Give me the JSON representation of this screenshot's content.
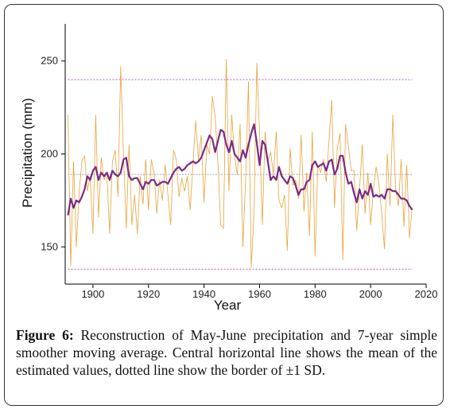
{
  "figure": {
    "caption_label": "Figure 6:",
    "caption_text": "Reconstruction of May-June precipitation and 7-year simple smoother moving average. Central horizontal line shows the mean of the estimated values, dotted line show the border of ±1 SD."
  },
  "chart_data": {
    "type": "line",
    "xlabel": "Year",
    "ylabel": "Precipitation (mm)",
    "xlim": [
      1890,
      2020
    ],
    "ylim": [
      130,
      270
    ],
    "xticks": [
      "1900",
      "1920",
      "1940",
      "1960",
      "1980",
      "2000",
      "2020"
    ],
    "yticks": [
      "150",
      "200",
      "250"
    ],
    "grid": false,
    "colors": {
      "annual": "#e8a33a",
      "smooth": "#7b2b83",
      "mean": "#999999",
      "sd": "#d25fd6"
    },
    "reference_lines": {
      "mean": 189,
      "plus_sd": 240,
      "minus_sd": 138
    },
    "series": [
      {
        "role": "annual",
        "x": [
          1891,
          1892,
          1893,
          1894,
          1895,
          1896,
          1897,
          1898,
          1899,
          1900,
          1901,
          1902,
          1903,
          1904,
          1905,
          1906,
          1907,
          1908,
          1909,
          1910,
          1911,
          1912,
          1913,
          1914,
          1915,
          1916,
          1917,
          1918,
          1919,
          1920,
          1921,
          1922,
          1923,
          1924,
          1925,
          1926,
          1927,
          1928,
          1929,
          1930,
          1931,
          1932,
          1933,
          1934,
          1935,
          1936,
          1937,
          1938,
          1939,
          1940,
          1941,
          1942,
          1943,
          1944,
          1945,
          1946,
          1947,
          1948,
          1949,
          1950,
          1951,
          1952,
          1953,
          1954,
          1955,
          1956,
          1957,
          1958,
          1959,
          1960,
          1961,
          1962,
          1963,
          1964,
          1965,
          1966,
          1967,
          1968,
          1969,
          1970,
          1971,
          1972,
          1973,
          1974,
          1975,
          1976,
          1977,
          1978,
          1979,
          1980,
          1981,
          1982,
          1983,
          1984,
          1985,
          1986,
          1987,
          1988,
          1989,
          1990,
          1991,
          1992,
          1993,
          1994,
          1995,
          1996,
          1997,
          1998,
          1999,
          2000,
          2001,
          2002,
          2003,
          2004,
          2005,
          2006,
          2007,
          2008,
          2009,
          2010,
          2011,
          2012,
          2013,
          2014,
          2015
        ],
        "y": [
          221,
          140,
          196,
          150,
          179,
          196,
          199,
          180,
          188,
          157,
          221,
          166,
          198,
          186,
          190,
          157,
          196,
          202,
          177,
          247,
          200,
          160,
          205,
          162,
          178,
          157,
          188,
          173,
          197,
          170,
          197,
          190,
          168,
          186,
          175,
          194,
          178,
          162,
          202,
          197,
          177,
          187,
          180,
          188,
          170,
          193,
          218,
          197,
          210,
          174,
          205,
          200,
          231,
          220,
          195,
          162,
          160,
          251,
          180,
          221,
          198,
          189,
          216,
          150,
          187,
          239,
          139,
          168,
          249,
          211,
          162,
          212,
          196,
          201,
          189,
          212,
          175,
          171,
          178,
          148,
          203,
          183,
          186,
          176,
          210,
          169,
          190,
          156,
          212,
          145,
          194,
          190,
          197,
          185,
          207,
          229,
          171,
          203,
          211,
          143,
          216,
          204,
          191,
          191,
          159,
          181,
          205,
          168,
          190,
          162,
          180,
          193,
          184,
          168,
          149,
          200,
          172,
          221,
          181,
          172,
          197,
          161,
          194,
          155,
          171
        ]
      },
      {
        "role": "smooth",
        "x": [
          1891,
          1892,
          1893,
          1894,
          1895,
          1896,
          1897,
          1898,
          1899,
          1900,
          1901,
          1902,
          1903,
          1904,
          1905,
          1906,
          1907,
          1908,
          1909,
          1910,
          1911,
          1912,
          1913,
          1914,
          1915,
          1916,
          1917,
          1918,
          1919,
          1920,
          1921,
          1922,
          1923,
          1924,
          1925,
          1926,
          1927,
          1928,
          1929,
          1930,
          1931,
          1932,
          1933,
          1934,
          1935,
          1936,
          1937,
          1938,
          1939,
          1940,
          1941,
          1942,
          1943,
          1944,
          1945,
          1946,
          1947,
          1948,
          1949,
          1950,
          1951,
          1952,
          1953,
          1954,
          1955,
          1956,
          1957,
          1958,
          1959,
          1960,
          1961,
          1962,
          1963,
          1964,
          1965,
          1966,
          1967,
          1968,
          1969,
          1970,
          1971,
          1972,
          1973,
          1974,
          1975,
          1976,
          1977,
          1978,
          1979,
          1980,
          1981,
          1982,
          1983,
          1984,
          1985,
          1986,
          1987,
          1988,
          1989,
          1990,
          1991,
          1992,
          1993,
          1994,
          1995,
          1996,
          1997,
          1998,
          1999,
          2000,
          2001,
          2002,
          2003,
          2004,
          2005,
          2006,
          2007,
          2008,
          2009,
          2010,
          2011,
          2012,
          2013,
          2014,
          2015
        ],
        "y": [
          167,
          176,
          171,
          175,
          174,
          177,
          181,
          188,
          186,
          191,
          193,
          186,
          190,
          188,
          190,
          186,
          191,
          189,
          188,
          190,
          197,
          198,
          188,
          186,
          187,
          187,
          184,
          181,
          185,
          184,
          186,
          186,
          183,
          184,
          185,
          185,
          184,
          187,
          190,
          192,
          193,
          191,
          192,
          194,
          195,
          196,
          195,
          196,
          198,
          202,
          206,
          210,
          208,
          201,
          207,
          213,
          212,
          205,
          201,
          207,
          200,
          198,
          196,
          202,
          198,
          205,
          211,
          216,
          206,
          194,
          207,
          205,
          196,
          186,
          188,
          186,
          193,
          188,
          186,
          184,
          188,
          187,
          183,
          178,
          181,
          181,
          185,
          186,
          194,
          196,
          193,
          194,
          195,
          191,
          196,
          197,
          189,
          192,
          199,
          199,
          190,
          184,
          185,
          179,
          174,
          181,
          176,
          180,
          178,
          184,
          177,
          178,
          177,
          178,
          176,
          181,
          181,
          180,
          180,
          178,
          176,
          176,
          175,
          172,
          170
        ]
      }
    ]
  }
}
